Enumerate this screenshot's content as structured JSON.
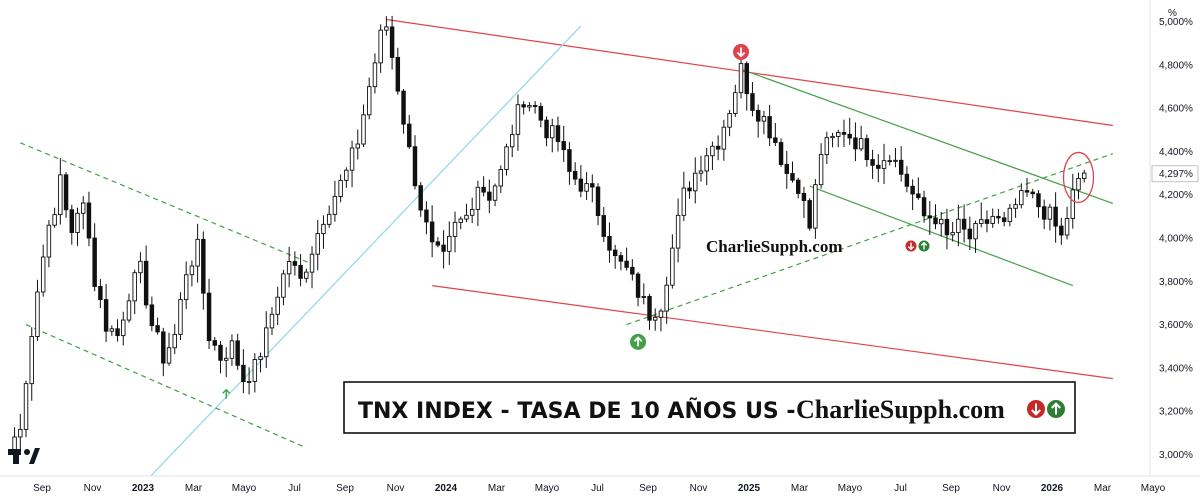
{
  "chart_data": {
    "type": "candlestick",
    "title": "TNX INDEX - TASA DE 10 AÑOS US - ",
    "brand": "CharlieSupph.com",
    "watermark": "CharlieSupph.com",
    "y_unit": "%",
    "ylim": [
      2.9,
      5.1
    ],
    "yticks": [
      "5,000%",
      "4,800%",
      "4,600%",
      "4,400%",
      "4,200%",
      "4,000%",
      "3,800%",
      "3,600%",
      "3,400%",
      "3,200%",
      "3,000%"
    ],
    "ytick_values": [
      5.0,
      4.8,
      4.6,
      4.4,
      4.2,
      4.0,
      3.8,
      3.6,
      3.4,
      3.2,
      3.0
    ],
    "last_price_label": "4,297%",
    "last_price": 4.297,
    "xticks": [
      {
        "label": "Sep",
        "bold": false
      },
      {
        "label": "Nov",
        "bold": false
      },
      {
        "label": "2023",
        "bold": true
      },
      {
        "label": "Mar",
        "bold": false
      },
      {
        "label": "Mayo",
        "bold": false
      },
      {
        "label": "Jul",
        "bold": false
      },
      {
        "label": "Sep",
        "bold": false
      },
      {
        "label": "Nov",
        "bold": false
      },
      {
        "label": "2024",
        "bold": true
      },
      {
        "label": "Mar",
        "bold": false
      },
      {
        "label": "Mayo",
        "bold": false
      },
      {
        "label": "Jul",
        "bold": false
      },
      {
        "label": "Sep",
        "bold": false
      },
      {
        "label": "Nov",
        "bold": false
      },
      {
        "label": "2025",
        "bold": true
      },
      {
        "label": "Mar",
        "bold": false
      },
      {
        "label": "Mayo",
        "bold": false
      },
      {
        "label": "Jul",
        "bold": false
      },
      {
        "label": "Sep",
        "bold": false
      },
      {
        "label": "Nov",
        "bold": false
      },
      {
        "label": "2026",
        "bold": true
      },
      {
        "label": "Mar",
        "bold": false
      },
      {
        "label": "Mayo",
        "bold": false
      }
    ],
    "anchors": [
      {
        "w": 0,
        "v": 3.0
      },
      {
        "w": 2,
        "v": 3.15
      },
      {
        "w": 4,
        "v": 3.55
      },
      {
        "w": 6,
        "v": 3.95
      },
      {
        "w": 8,
        "v": 4.1
      },
      {
        "w": 9,
        "v": 4.3
      },
      {
        "w": 11,
        "v": 4.0
      },
      {
        "w": 13,
        "v": 4.2
      },
      {
        "w": 15,
        "v": 3.8
      },
      {
        "w": 17,
        "v": 3.6
      },
      {
        "w": 19,
        "v": 3.55
      },
      {
        "w": 21,
        "v": 3.75
      },
      {
        "w": 23,
        "v": 3.85
      },
      {
        "w": 25,
        "v": 3.6
      },
      {
        "w": 27,
        "v": 3.45
      },
      {
        "w": 29,
        "v": 3.55
      },
      {
        "w": 31,
        "v": 3.85
      },
      {
        "w": 33,
        "v": 3.95
      },
      {
        "w": 35,
        "v": 3.55
      },
      {
        "w": 37,
        "v": 3.45
      },
      {
        "w": 39,
        "v": 3.5
      },
      {
        "w": 41,
        "v": 3.35
      },
      {
        "w": 43,
        "v": 3.4
      },
      {
        "w": 45,
        "v": 3.55
      },
      {
        "w": 47,
        "v": 3.75
      },
      {
        "w": 49,
        "v": 3.9
      },
      {
        "w": 51,
        "v": 3.8
      },
      {
        "w": 53,
        "v": 3.95
      },
      {
        "w": 55,
        "v": 4.1
      },
      {
        "w": 57,
        "v": 4.2
      },
      {
        "w": 59,
        "v": 4.3
      },
      {
        "w": 61,
        "v": 4.45
      },
      {
        "w": 63,
        "v": 4.7
      },
      {
        "w": 65,
        "v": 4.93
      },
      {
        "w": 66,
        "v": 4.98
      },
      {
        "w": 68,
        "v": 4.7
      },
      {
        "w": 70,
        "v": 4.4
      },
      {
        "w": 72,
        "v": 4.15
      },
      {
        "w": 74,
        "v": 3.95
      },
      {
        "w": 76,
        "v": 3.9
      },
      {
        "w": 78,
        "v": 4.05
      },
      {
        "w": 80,
        "v": 4.1
      },
      {
        "w": 82,
        "v": 4.25
      },
      {
        "w": 84,
        "v": 4.2
      },
      {
        "w": 86,
        "v": 4.3
      },
      {
        "w": 88,
        "v": 4.5
      },
      {
        "w": 90,
        "v": 4.65
      },
      {
        "w": 92,
        "v": 4.6
      },
      {
        "w": 94,
        "v": 4.5
      },
      {
        "w": 96,
        "v": 4.45
      },
      {
        "w": 98,
        "v": 4.3
      },
      {
        "w": 100,
        "v": 4.25
      },
      {
        "w": 102,
        "v": 4.2
      },
      {
        "w": 104,
        "v": 4.05
      },
      {
        "w": 106,
        "v": 3.9
      },
      {
        "w": 108,
        "v": 3.85
      },
      {
        "w": 110,
        "v": 3.75
      },
      {
        "w": 112,
        "v": 3.65
      },
      {
        "w": 114,
        "v": 3.7
      },
      {
        "w": 116,
        "v": 3.95
      },
      {
        "w": 118,
        "v": 4.2
      },
      {
        "w": 120,
        "v": 4.3
      },
      {
        "w": 122,
        "v": 4.4
      },
      {
        "w": 124,
        "v": 4.45
      },
      {
        "w": 126,
        "v": 4.6
      },
      {
        "w": 128,
        "v": 4.78
      },
      {
        "w": 130,
        "v": 4.62
      },
      {
        "w": 132,
        "v": 4.55
      },
      {
        "w": 134,
        "v": 4.45
      },
      {
        "w": 136,
        "v": 4.3
      },
      {
        "w": 138,
        "v": 4.25
      },
      {
        "w": 140,
        "v": 4.05
      },
      {
        "w": 142,
        "v": 4.4
      },
      {
        "w": 144,
        "v": 4.45
      },
      {
        "w": 146,
        "v": 4.5
      },
      {
        "w": 148,
        "v": 4.45
      },
      {
        "w": 150,
        "v": 4.4
      },
      {
        "w": 152,
        "v": 4.35
      },
      {
        "w": 154,
        "v": 4.4
      },
      {
        "w": 156,
        "v": 4.3
      },
      {
        "w": 158,
        "v": 4.2
      },
      {
        "w": 160,
        "v": 4.1
      },
      {
        "w": 162,
        "v": 4.1
      },
      {
        "w": 164,
        "v": 4.0
      },
      {
        "w": 166,
        "v": 4.05
      },
      {
        "w": 168,
        "v": 4.0
      },
      {
        "w": 170,
        "v": 4.05
      },
      {
        "w": 172,
        "v": 4.1
      },
      {
        "w": 174,
        "v": 4.05
      },
      {
        "w": 176,
        "v": 4.15
      },
      {
        "w": 178,
        "v": 4.2
      },
      {
        "w": 180,
        "v": 4.15
      },
      {
        "w": 182,
        "v": 4.1
      },
      {
        "w": 184,
        "v": 4.0
      },
      {
        "w": 186,
        "v": 4.2
      },
      {
        "w": 188,
        "v": 4.3
      }
    ],
    "channels": [
      {
        "name": "red-upper",
        "color": "#e0434b",
        "dash": false,
        "x1": 66,
        "y1": 5.01,
        "x2": 193,
        "y2": 4.52
      },
      {
        "name": "red-lower",
        "color": "#e0434b",
        "dash": false,
        "x1": 74,
        "y1": 3.78,
        "x2": 193,
        "y2": 3.35
      },
      {
        "name": "green-upper",
        "color": "#43a047",
        "dash": false,
        "x1": 128,
        "y1": 4.78,
        "x2": 193,
        "y2": 4.16
      },
      {
        "name": "green-lower",
        "color": "#43a047",
        "dash": false,
        "x1": 140,
        "y1": 4.24,
        "x2": 186,
        "y2": 3.78
      },
      {
        "name": "cyan-trend",
        "color": "#8ed8e6",
        "dash": false,
        "x1": 23,
        "y1": 2.85,
        "x2": 100,
        "y2": 4.98
      },
      {
        "name": "green-dash-upper",
        "color": "#43a047",
        "dash": true,
        "x1": 2,
        "y1": 4.44,
        "x2": 53,
        "y2": 3.88
      },
      {
        "name": "green-dash-lower",
        "color": "#43a047",
        "dash": true,
        "x1": 3,
        "y1": 3.6,
        "x2": 52,
        "y2": 3.03
      },
      {
        "name": "green-dash-mid",
        "color": "#43a047",
        "dash": true,
        "x1": 108,
        "y1": 3.6,
        "x2": 193,
        "y2": 4.39
      }
    ],
    "markers": [
      {
        "name": "down-arrow-marker",
        "type": "down",
        "w": 128,
        "v": 4.86
      },
      {
        "name": "up-arrow-marker",
        "type": "up",
        "w": 110,
        "v": 3.52
      },
      {
        "name": "small-up-arrow",
        "type": "small-up",
        "w": 38,
        "v": 3.28
      }
    ]
  }
}
